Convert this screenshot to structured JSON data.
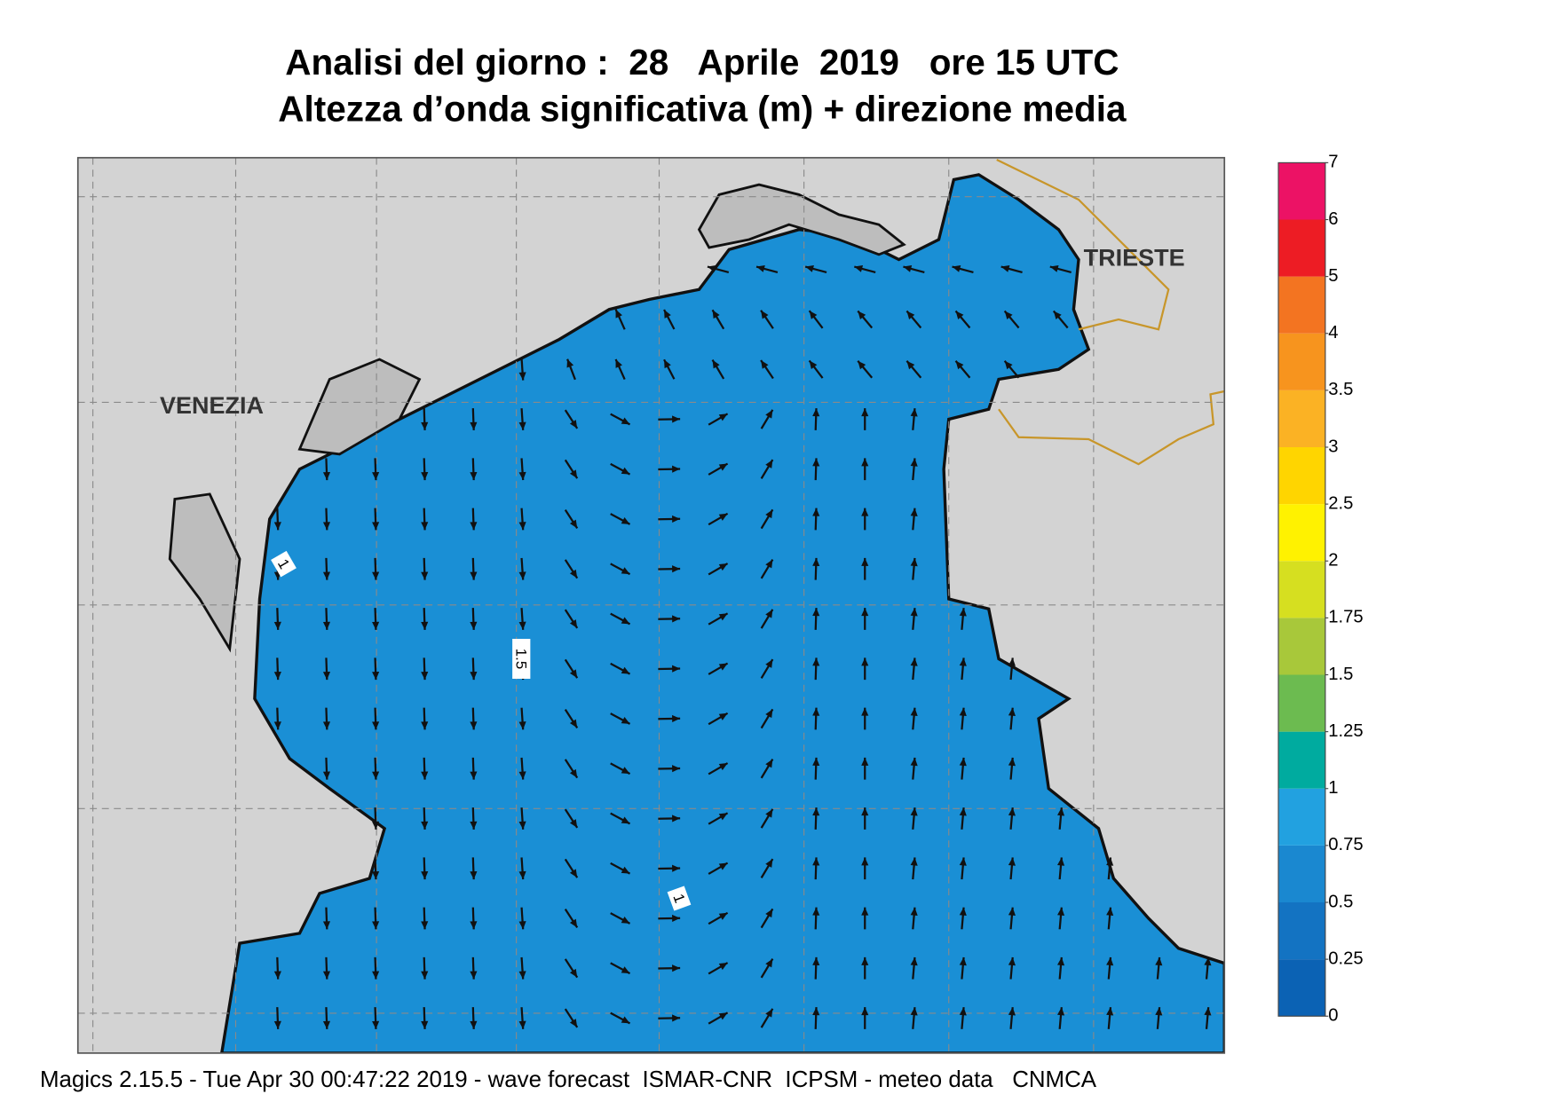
{
  "title": [
    "Analisi del giorno :  28   Aprile  2019   ore 15 UTC",
    "Altezza d’onda significativa (m) + direzione media"
  ],
  "places": [
    "VENEZIA",
    "TRIESTE"
  ],
  "contour_labels": [
    "1",
    "1.5",
    "1"
  ],
  "colorbar": {
    "levels": [
      0,
      0.25,
      0.5,
      0.75,
      1,
      1.25,
      1.5,
      1.75,
      2,
      2.5,
      3,
      3.5,
      4,
      5,
      6,
      7
    ],
    "colors": [
      "#0b62b4",
      "#1373c2",
      "#1a88d0",
      "#22a1e0",
      "#00ab9f",
      "#6cbb50",
      "#a8c83a",
      "#d6df20",
      "#fff200",
      "#ffd500",
      "#fbb224",
      "#f7941e",
      "#f37421",
      "#ed1c24",
      "#ec1265"
    ]
  },
  "footer": "Magics 2.15.5 - Tue Apr 30 00:47:22 2019 - wave forecast  ISMAR-CNR  ICPSM - meteo data   CNMCA"
}
